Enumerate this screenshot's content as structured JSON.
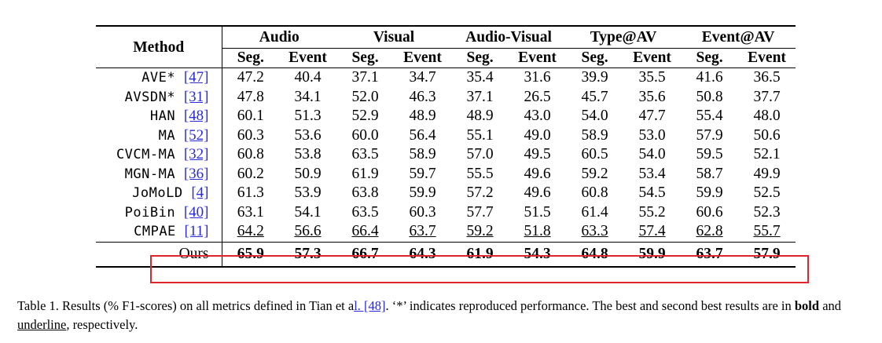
{
  "table": {
    "method_header": "Method",
    "groups": [
      "Audio",
      "Visual",
      "Audio-Visual",
      "Type@AV",
      "Event@AV"
    ],
    "subheaders": [
      "Seg.",
      "Event"
    ],
    "rows": [
      {
        "name": "AVE*",
        "ref": "[47]",
        "values": [
          "47.2",
          "40.4",
          "37.1",
          "34.7",
          "35.4",
          "31.6",
          "39.9",
          "35.5",
          "41.6",
          "36.5"
        ],
        "underline": []
      },
      {
        "name": "AVSDN*",
        "ref": "[31]",
        "values": [
          "47.8",
          "34.1",
          "52.0",
          "46.3",
          "37.1",
          "26.5",
          "45.7",
          "35.6",
          "50.8",
          "37.7"
        ],
        "underline": []
      },
      {
        "name": "HAN",
        "ref": "[48]",
        "values": [
          "60.1",
          "51.3",
          "52.9",
          "48.9",
          "48.9",
          "43.0",
          "54.0",
          "47.7",
          "55.4",
          "48.0"
        ],
        "underline": []
      },
      {
        "name": "MA",
        "ref": "[52]",
        "values": [
          "60.3",
          "53.6",
          "60.0",
          "56.4",
          "55.1",
          "49.0",
          "58.9",
          "53.0",
          "57.9",
          "50.6"
        ],
        "underline": []
      },
      {
        "name": "CVCM-MA",
        "ref": "[32]",
        "values": [
          "60.8",
          "53.8",
          "63.5",
          "58.9",
          "57.0",
          "49.5",
          "60.5",
          "54.0",
          "59.5",
          "52.1"
        ],
        "underline": []
      },
      {
        "name": "MGN-MA",
        "ref": "[36]",
        "values": [
          "60.2",
          "50.9",
          "61.9",
          "59.7",
          "55.5",
          "49.6",
          "59.2",
          "53.4",
          "58.7",
          "49.9"
        ],
        "underline": []
      },
      {
        "name": "JoMoLD",
        "ref": "[4]",
        "values": [
          "61.3",
          "53.9",
          "63.8",
          "59.9",
          "57.2",
          "49.6",
          "60.8",
          "54.5",
          "59.9",
          "52.5"
        ],
        "underline": []
      },
      {
        "name": "PoiBin",
        "ref": "[40]",
        "values": [
          "63.1",
          "54.1",
          "63.5",
          "60.3",
          "57.7",
          "51.5",
          "61.4",
          "55.2",
          "60.6",
          "52.3"
        ],
        "underline": []
      },
      {
        "name": "CMPAE",
        "ref": "[11]",
        "values": [
          "64.2",
          "56.6",
          "66.4",
          "63.7",
          "59.2",
          "51.8",
          "63.3",
          "57.4",
          "62.8",
          "55.7"
        ],
        "underline": [
          0,
          1,
          2,
          3,
          4,
          5,
          6,
          7,
          8,
          9
        ]
      }
    ],
    "ours": {
      "name": "Ours",
      "values": [
        "65.9",
        "57.3",
        "66.7",
        "64.3",
        "61.9",
        "54.3",
        "64.8",
        "59.9",
        "63.7",
        "57.9"
      ]
    }
  },
  "caption": {
    "prefix": "Table 1. Results (% F1-scores) on all metrics defined in Tian et a",
    "ref_text": "l. [48]",
    "mid": ". ‘*’ indicates reproduced performance. The best and second best results are in ",
    "bold_word": "bold",
    "and_text": " and ",
    "underline_word": "underline",
    "suffix": ", respectively."
  }
}
